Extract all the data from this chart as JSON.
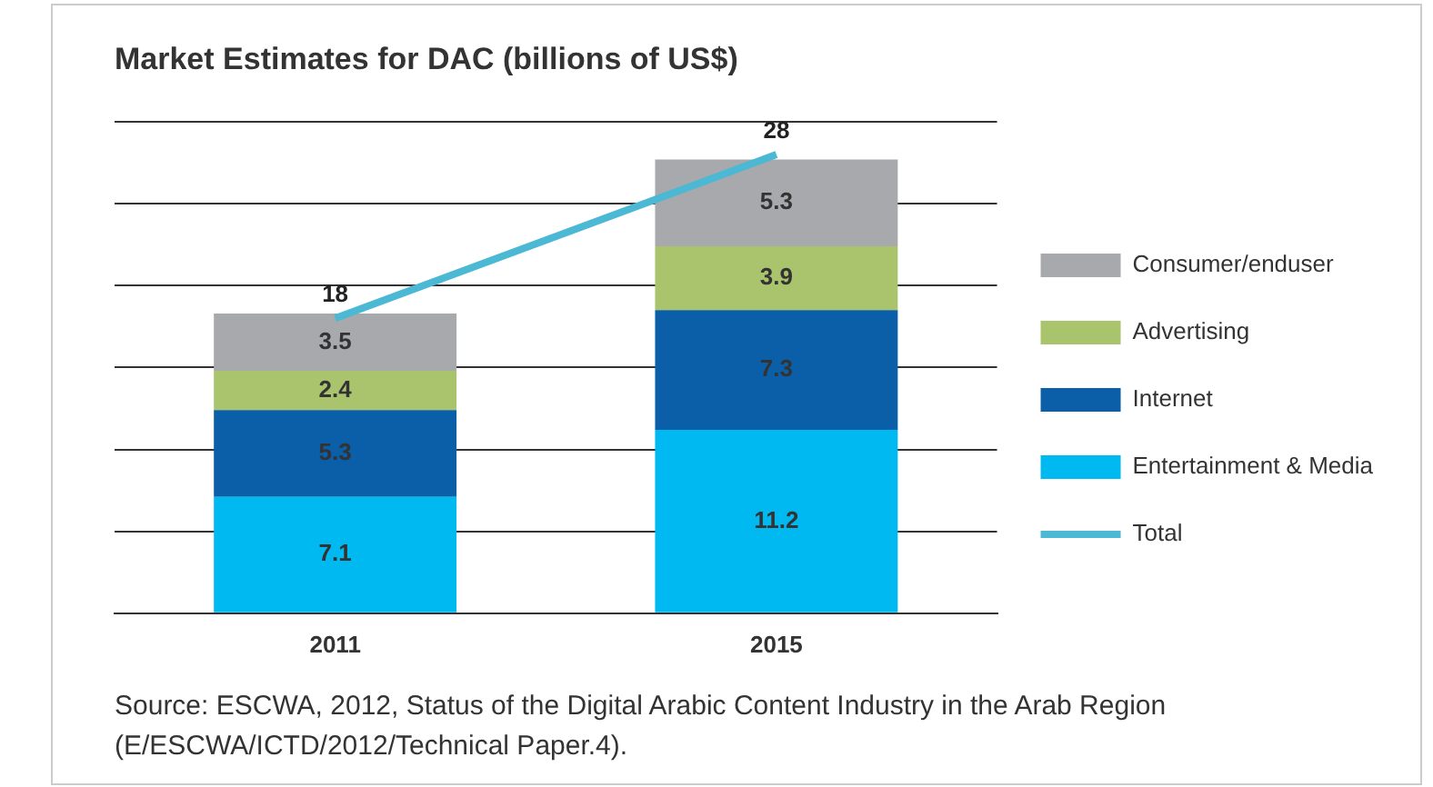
{
  "chart_data": {
    "type": "bar",
    "title": "Market Estimates for DAC (billions of US$)",
    "categories": [
      "2011",
      "2015"
    ],
    "stacked": true,
    "series": [
      {
        "name": "Entertainment & Media",
        "color": "#00b9f1",
        "values": [
          7.1,
          11.2
        ]
      },
      {
        "name": "Internet",
        "color": "#0a5fa8",
        "values": [
          5.3,
          7.3
        ]
      },
      {
        "name": "Advertising",
        "color": "#a9c46c",
        "values": [
          2.4,
          3.9
        ]
      },
      {
        "name": "Consumer/enduser",
        "color": "#a7a9ac",
        "values": [
          3.5,
          5.3
        ]
      },
      {
        "name": "Total",
        "type": "line",
        "color": "#4bb8d4",
        "values": [
          18,
          28
        ]
      }
    ],
    "grid": "y",
    "tick_labels": "x",
    "legend": "right",
    "marker": "none",
    "data_labels": true,
    "annotations": [
      "Source: ESCWA, 2012, Status of the Digital Arabic Content Industry in the Arab Region (E/ESCWA/ICTD/2012/Technical Paper.4)."
    ]
  }
}
